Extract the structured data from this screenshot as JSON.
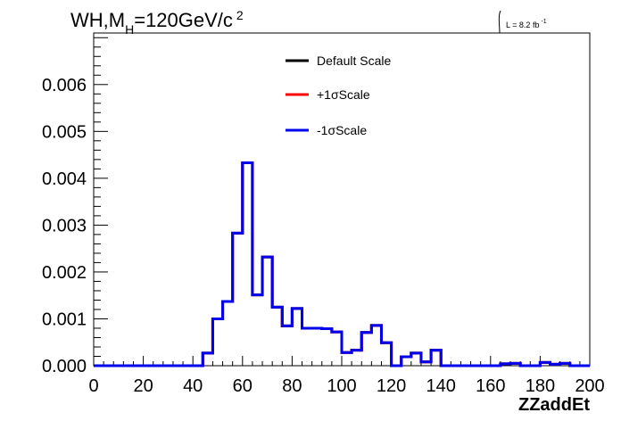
{
  "chart_data": {
    "type": "line",
    "title": {
      "main": "WH,M",
      "sub": "H",
      "after": "=120GeV/c",
      "sup": "2"
    },
    "lumi": {
      "prefix": "L = 8.2 fb",
      "sup": "-1"
    },
    "xlabel": "ZZaddEt",
    "xlim": [
      0,
      200
    ],
    "ylim": [
      0,
      0.0071
    ],
    "x_ticks": [
      "0",
      "20",
      "40",
      "60",
      "80",
      "100",
      "120",
      "140",
      "160",
      "180",
      "200"
    ],
    "y_ticks": [
      "0.000",
      "0.001",
      "0.002",
      "0.003",
      "0.004",
      "0.005",
      "0.006"
    ],
    "bin_width": 4,
    "x_start": 0,
    "series": [
      {
        "name": "Default Scale",
        "color": "#000000",
        "values": [
          0,
          0,
          0,
          0,
          0,
          0,
          0,
          0,
          0,
          0,
          0,
          0.00027,
          0.001,
          0.00137,
          0.00283,
          0.00433,
          0.00151,
          0.00232,
          0.00125,
          0.00085,
          0.00122,
          0.0008,
          0.0008,
          0.00079,
          0.00072,
          0.00028,
          0.00033,
          0.00071,
          0.00086,
          0.00049,
          0.0,
          0.00019,
          0.00027,
          8e-05,
          0.00033,
          0.0,
          0.0,
          0.0,
          0.0,
          0.0,
          0.0,
          4e-05,
          5e-05,
          0.0,
          0.0,
          7e-05,
          3e-05,
          5e-05,
          0.0,
          0.0
        ]
      },
      {
        "name": "+1σScale",
        "color": "#ff0000",
        "values": [
          0,
          0,
          0,
          0,
          0,
          0,
          0,
          0,
          0,
          0,
          0,
          0.00027,
          0.001,
          0.00137,
          0.00283,
          0.00433,
          0.00151,
          0.00232,
          0.00125,
          0.00085,
          0.00122,
          0.0008,
          0.0008,
          0.00079,
          0.00072,
          0.00028,
          0.00033,
          0.00071,
          0.00086,
          0.00049,
          0.0,
          0.00019,
          0.00027,
          8e-05,
          0.00033,
          0.0,
          0.0,
          0.0,
          0.0,
          0.0,
          0.0,
          4e-05,
          5e-05,
          0.0,
          0.0,
          7e-05,
          3e-05,
          5e-05,
          0.0,
          0.0
        ]
      },
      {
        "name": "-1σScale",
        "color": "#0000ee",
        "values": [
          0,
          0,
          0,
          0,
          0,
          0,
          0,
          0,
          0,
          0,
          0,
          0.00027,
          0.001,
          0.00137,
          0.00283,
          0.00433,
          0.00151,
          0.00232,
          0.00125,
          0.00085,
          0.00122,
          0.0008,
          0.0008,
          0.00079,
          0.00072,
          0.00028,
          0.00033,
          0.00071,
          0.00086,
          0.00049,
          0.0,
          0.00019,
          0.00027,
          8e-05,
          0.00033,
          0.0,
          0.0,
          0.0,
          0.0,
          0.0,
          0.0,
          4e-05,
          5e-05,
          0.0,
          0.0,
          7e-05,
          3e-05,
          5e-05,
          0.0,
          0.0
        ]
      }
    ],
    "legend": {
      "position": "top-center"
    },
    "grid": false
  }
}
